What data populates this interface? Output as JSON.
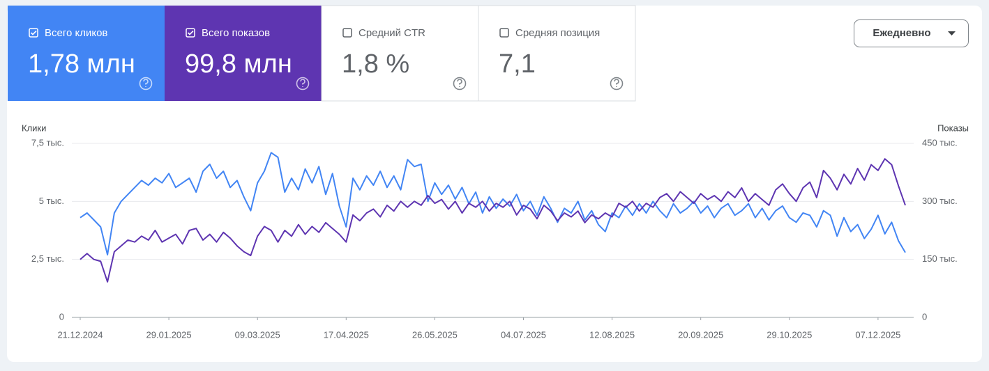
{
  "cards": [
    {
      "label": "Всего кликов",
      "value": "1,78 млн",
      "checked": true
    },
    {
      "label": "Всего показов",
      "value": "99,8 млн",
      "checked": true
    },
    {
      "label": "Средний CTR",
      "value": "1,8 %",
      "checked": false
    },
    {
      "label": "Средняя позиция",
      "value": "7,1",
      "checked": false
    }
  ],
  "period_button": "Ежедневно",
  "chart_data": {
    "type": "line",
    "y_label": "Клики",
    "y2_label": "Показы",
    "grid": true,
    "categories": [
      "21.12.2024",
      null,
      null,
      null,
      null,
      null,
      null,
      null,
      null,
      null,
      null,
      null,
      null,
      "29.01.2025",
      null,
      null,
      null,
      null,
      null,
      null,
      null,
      null,
      null,
      null,
      null,
      null,
      "09.03.2025",
      null,
      null,
      null,
      null,
      null,
      null,
      null,
      null,
      null,
      null,
      null,
      null,
      "17.04.2025",
      null,
      null,
      null,
      null,
      null,
      null,
      null,
      null,
      null,
      null,
      null,
      null,
      "26.05.2025",
      null,
      null,
      null,
      null,
      null,
      null,
      null,
      null,
      null,
      null,
      null,
      null,
      "04.07.2025",
      null,
      null,
      null,
      null,
      null,
      null,
      null,
      null,
      null,
      null,
      null,
      null,
      "12.08.2025",
      null,
      null,
      null,
      null,
      null,
      null,
      null,
      null,
      null,
      null,
      null,
      null,
      "20.09.2025",
      null,
      null,
      null,
      null,
      null,
      null,
      null,
      null,
      null,
      null,
      null,
      null,
      "29.10.2025",
      null,
      null,
      null,
      null,
      null,
      null,
      null,
      null,
      null,
      null,
      null,
      null,
      "07.12.2025",
      null,
      null,
      null,
      null
    ],
    "ylim": [
      0,
      7500
    ],
    "yticks": [
      0,
      {
        "value": 2500,
        "label": "2,5 тыс."
      },
      {
        "value": 5000,
        "label": "5 тыс."
      },
      {
        "value": 7500,
        "label": "7,5 тыс."
      }
    ],
    "y2lim": [
      0,
      450000
    ],
    "y2ticks": [
      0,
      {
        "value": 150000,
        "label": "150 тыс."
      },
      {
        "value": 300000,
        "label": "300 тыс."
      },
      {
        "value": 450000,
        "label": "450 тыс."
      }
    ],
    "series": [
      {
        "color": "#4285f4",
        "values": [
          4300,
          4500,
          4200,
          3900,
          2700,
          4500,
          5000,
          5300,
          5600,
          5900,
          5700,
          6000,
          5800,
          6200,
          5600,
          5800,
          6000,
          5400,
          6300,
          6600,
          6000,
          6300,
          5600,
          5900,
          5200,
          4600,
          5800,
          6300,
          7100,
          6900,
          5400,
          6000,
          5500,
          6400,
          5800,
          6500,
          5300,
          6200,
          4800,
          3900,
          6000,
          5500,
          6100,
          5700,
          6300,
          5600,
          6100,
          5500,
          6800,
          6500,
          6600,
          5000,
          5800,
          5300,
          5700,
          5100,
          5600,
          4900,
          5400,
          4500,
          5200,
          4700,
          5100,
          4800,
          5300,
          4600,
          5000,
          4400,
          5200,
          4700,
          4100,
          4700,
          4500,
          5000,
          4200,
          4600,
          4000,
          3700,
          4500,
          4300,
          4800,
          4400,
          4900,
          4500,
          5000,
          4600,
          4300,
          4900,
          4500,
          4700,
          5000,
          4500,
          4800,
          4300,
          4700,
          4900,
          4400,
          4600,
          4900,
          4300,
          4700,
          4200,
          4600,
          4800,
          4300,
          4100,
          4500,
          4400,
          3900,
          4600,
          4400,
          3500,
          4300,
          3700,
          4000,
          3400,
          3800,
          4400,
          3600,
          4100,
          3300,
          2800
        ]
      },
      {
        "color": "#5e35b1",
        "axis": "y2",
        "values": [
          150000,
          165000,
          150000,
          145000,
          92000,
          170000,
          185000,
          200000,
          195000,
          210000,
          200000,
          225000,
          195000,
          205000,
          215000,
          190000,
          225000,
          230000,
          200000,
          215000,
          195000,
          220000,
          205000,
          185000,
          170000,
          160000,
          210000,
          235000,
          225000,
          195000,
          225000,
          210000,
          240000,
          215000,
          235000,
          220000,
          245000,
          230000,
          215000,
          195000,
          265000,
          250000,
          270000,
          280000,
          260000,
          290000,
          275000,
          300000,
          285000,
          300000,
          290000,
          315000,
          295000,
          305000,
          280000,
          300000,
          270000,
          295000,
          285000,
          300000,
          275000,
          295000,
          285000,
          300000,
          265000,
          290000,
          280000,
          255000,
          290000,
          275000,
          250000,
          270000,
          260000,
          275000,
          245000,
          265000,
          255000,
          270000,
          260000,
          295000,
          285000,
          300000,
          275000,
          295000,
          285000,
          310000,
          320000,
          300000,
          325000,
          310000,
          295000,
          320000,
          305000,
          315000,
          300000,
          325000,
          310000,
          335000,
          300000,
          320000,
          305000,
          290000,
          330000,
          345000,
          320000,
          300000,
          335000,
          350000,
          310000,
          380000,
          360000,
          330000,
          370000,
          345000,
          385000,
          355000,
          395000,
          380000,
          410000,
          395000,
          340000,
          290000
        ]
      }
    ]
  }
}
